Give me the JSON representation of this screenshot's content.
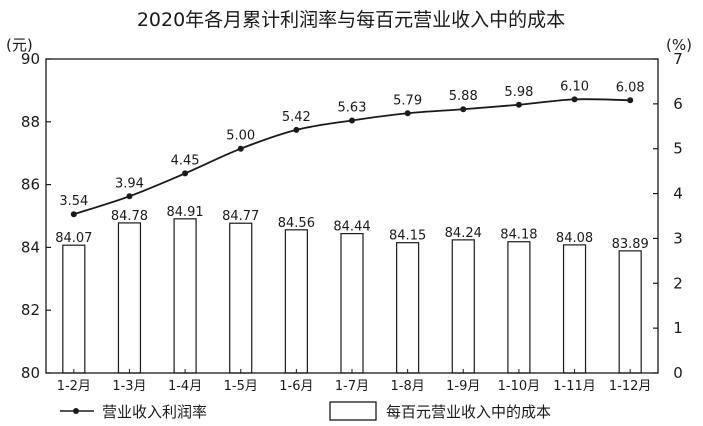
{
  "chart_data": {
    "type": "bar",
    "title": "2020年各月累计利润率与每百元营业收入中的成本",
    "left_unit": "(元)",
    "right_unit": "(%)",
    "categories": [
      "1-2月",
      "1-3月",
      "1-4月",
      "1-5月",
      "1-6月",
      "1-7月",
      "1-8月",
      "1-9月",
      "1-10月",
      "1-11月",
      "1-12月"
    ],
    "series": [
      {
        "name": "每百元营业收入中的成本",
        "type": "bar",
        "axis": "left",
        "values": [
          84.07,
          84.78,
          84.91,
          84.77,
          84.56,
          84.44,
          84.15,
          84.24,
          84.18,
          84.08,
          83.89
        ],
        "labels": [
          "84.07",
          "84.78",
          "84.91",
          "84.77",
          "84.56",
          "84.44",
          "84.15",
          "84.24",
          "84.18",
          "84.08",
          "83.89"
        ]
      },
      {
        "name": "营业收入利润率",
        "type": "line",
        "axis": "right",
        "values": [
          3.54,
          3.94,
          4.45,
          5.0,
          5.42,
          5.63,
          5.79,
          5.88,
          5.98,
          6.1,
          6.08
        ],
        "labels": [
          "3.54",
          "3.94",
          "4.45",
          "5.00",
          "5.42",
          "5.63",
          "5.79",
          "5.88",
          "5.98",
          "6.10",
          "6.08"
        ]
      }
    ],
    "y_left": {
      "min": 80,
      "max": 90,
      "ticks": [
        80,
        82,
        84,
        86,
        88,
        90
      ]
    },
    "y_right": {
      "min": 0,
      "max": 7,
      "ticks": [
        0,
        1,
        2,
        3,
        4,
        5,
        6,
        7
      ]
    },
    "legend_position": "bottom",
    "grid": false
  },
  "colors": {
    "ink": "#1a1a1a",
    "bar_fill": "#ffffff",
    "background": "#ffffff"
  }
}
